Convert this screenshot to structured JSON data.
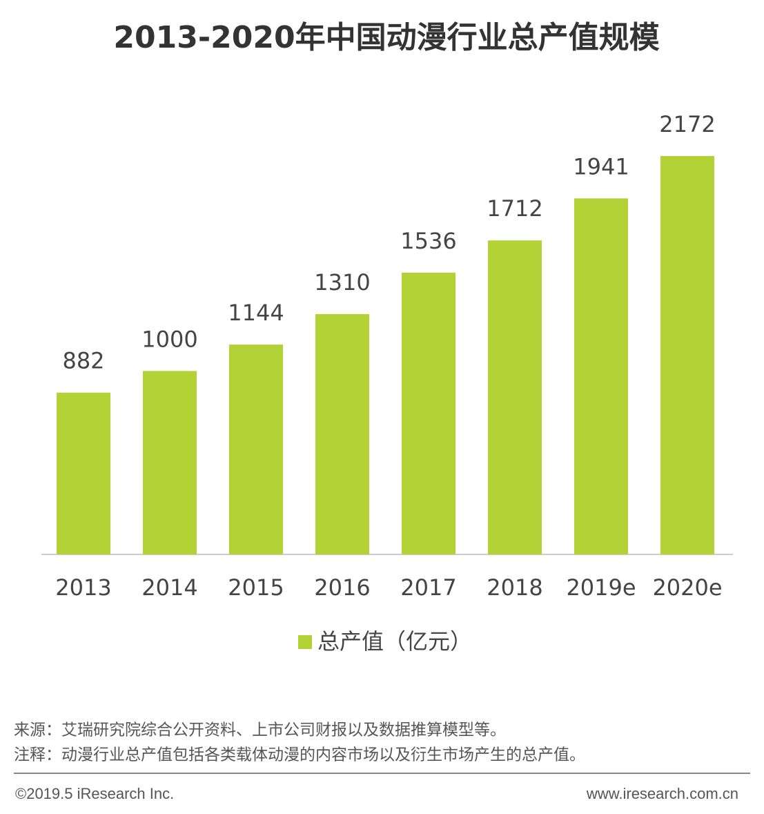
{
  "chart_data": {
    "type": "bar",
    "title": "2013-2020年中国动漫行业总产值规模",
    "categories": [
      "2013",
      "2014",
      "2015",
      "2016",
      "2017",
      "2018",
      "2019e",
      "2020e"
    ],
    "series": [
      {
        "name": "总产值（亿元）",
        "color": "#b2d235",
        "values": [
          882,
          1000,
          1144,
          1310,
          1536,
          1712,
          1941,
          2172
        ]
      }
    ],
    "legend": "bottom"
  },
  "footer": {
    "source": "来源：艾瑞研究院综合公开资料、上市公司财报以及数据推算模型等。",
    "note": "注释：动漫行业总产值包括各类载体动漫的内容市场以及衍生市场产生的总产值。",
    "copyright": "©2019.5 iResearch Inc.",
    "website": "www.iresearch.com.cn"
  }
}
